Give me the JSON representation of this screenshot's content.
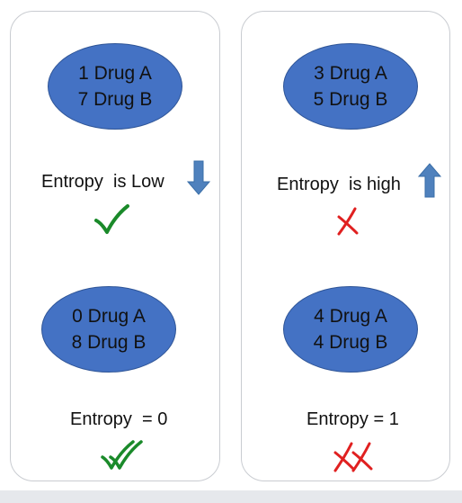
{
  "colors": {
    "ellipse_fill": "#4472c4",
    "arrow": "#4f81bd",
    "check": "#1a8a2a",
    "cross": "#e02020"
  },
  "left": {
    "top_ellipse": {
      "line1": "1 Drug A",
      "line2": "7 Drug B"
    },
    "top_entropy": "Entropy  is Low",
    "top_arrow_icon": "arrow-down-icon",
    "top_mark_icon": "check-icon",
    "bottom_ellipse": {
      "line1": "0 Drug A",
      "line2": "8 Drug B"
    },
    "bottom_entropy": "Entropy  = 0",
    "bottom_mark_icon": "double-check-icon"
  },
  "right": {
    "top_ellipse": {
      "line1": "3 Drug A",
      "line2": "5 Drug B"
    },
    "top_entropy": "Entropy  is high",
    "top_arrow_icon": "arrow-up-icon",
    "top_mark_icon": "cross-icon",
    "bottom_ellipse": {
      "line1": "4 Drug A",
      "line2": "4 Drug B"
    },
    "bottom_entropy": "Entropy = 1",
    "bottom_mark_icon": "double-cross-icon"
  }
}
